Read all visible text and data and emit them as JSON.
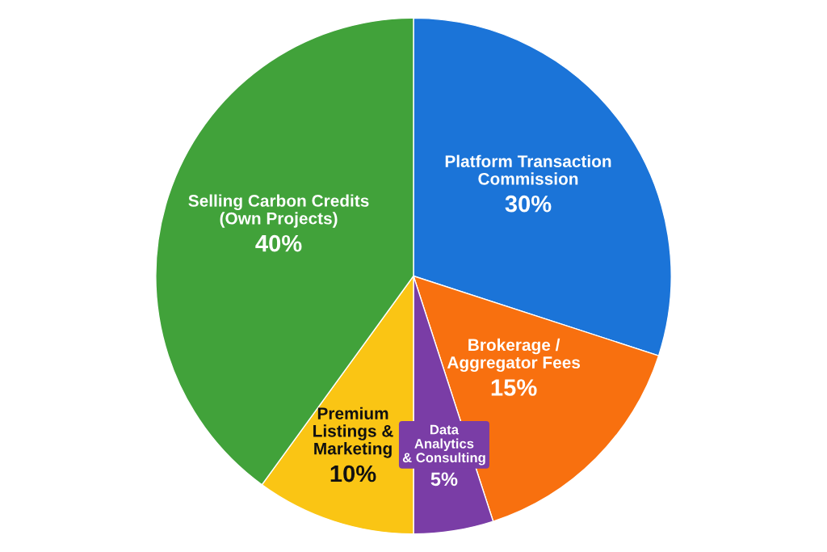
{
  "chart_data": {
    "type": "pie",
    "categories": [
      "Platform Transaction\nCommission",
      "Brokerage /\nAggregator Fees",
      "Data\nAnalytics\n& Consulting",
      "Premium\nListings &\nMarketing",
      "Selling Carbon Credits\n(Own Projects)"
    ],
    "values": [
      30,
      15,
      5,
      10,
      40
    ],
    "value_labels": [
      "30%",
      "15%",
      "5%",
      "10%",
      "40%"
    ],
    "colors": [
      "#1b74d8",
      "#f8700f",
      "#7a3da6",
      "#fac514",
      "#41a23a"
    ],
    "legend": false
  }
}
